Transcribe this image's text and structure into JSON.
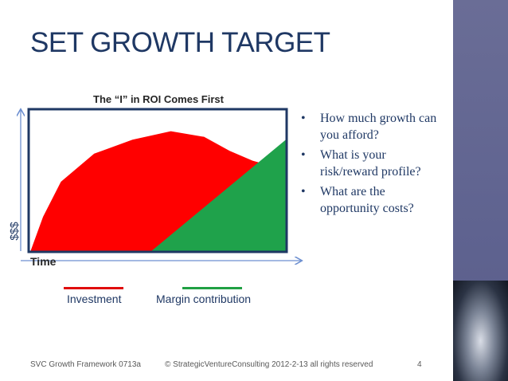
{
  "slide": {
    "title": "SET GROWTH TARGET",
    "page_number": "4"
  },
  "chart": {
    "title": "The “I” in ROI Comes First",
    "y_label": "$$$",
    "x_label": "Time",
    "legend": {
      "investment": "Investment",
      "margin": "Margin contribution"
    },
    "colors": {
      "investment": "#ff0000",
      "margin": "#1fa24b",
      "frame": "#1f3864",
      "axis_arrow": "#6d8fd0"
    }
  },
  "bullets": [
    "How much growth can you afford?",
    "What is your risk/reward profile?",
    "What are the opportunity costs?"
  ],
  "footer": {
    "left": "SVC Growth Framework 0713a",
    "center": "© StrategicVentureConsulting  2012-2-13  all rights reserved"
  },
  "chart_data": {
    "type": "area",
    "title": "The “I” in ROI Comes First",
    "xlabel": "Time",
    "ylabel": "$$$",
    "series": [
      {
        "name": "Investment",
        "x": [
          0,
          0.05,
          0.12,
          0.25,
          0.4,
          0.55,
          0.68,
          0.78,
          0.87,
          0.93,
          1.0
        ],
        "values": [
          0,
          0.25,
          0.5,
          0.7,
          0.8,
          0.86,
          0.82,
          0.72,
          0.65,
          0.62,
          0.6
        ]
      },
      {
        "name": "Margin contribution",
        "x": [
          0.47,
          1.0
        ],
        "values": [
          0,
          0.8
        ]
      }
    ]
  }
}
